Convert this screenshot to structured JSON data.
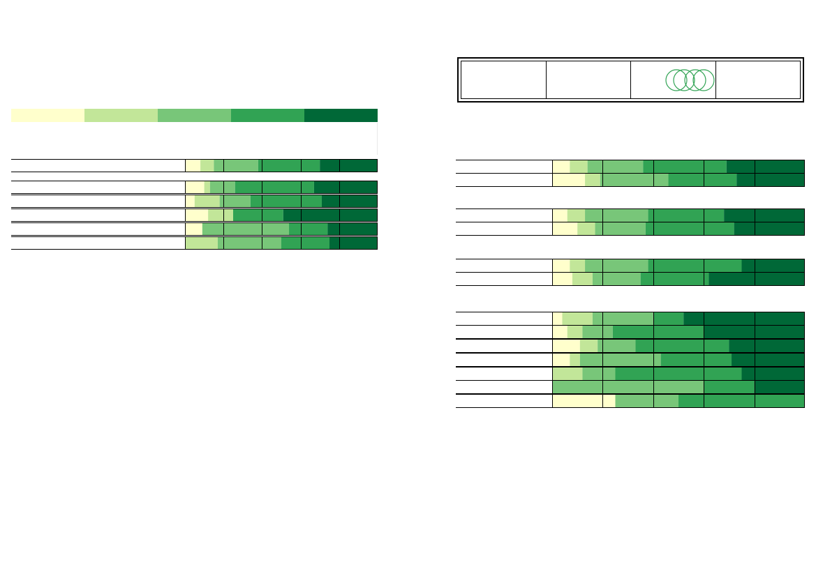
{
  "colors": {
    "scale": [
      "#ffffcc",
      "#c2e699",
      "#78c679",
      "#31a354",
      "#006837"
    ],
    "gridline": "#000000",
    "rings": "#31a354"
  },
  "legend": {
    "colors": [
      "#ffffcc",
      "#c2e699",
      "#78c679",
      "#31a354",
      "#006837"
    ]
  },
  "header_table": {
    "columns": 4,
    "icon": "interlocking-rings-icon"
  },
  "chart_data": [
    {
      "type": "stacked-bar",
      "orientation": "horizontal",
      "scale": "percent",
      "xlim": [
        0,
        100
      ],
      "gridlines": [
        20,
        40,
        60,
        80
      ],
      "categories": [],
      "rows": [
        [
          8,
          7,
          23,
          32,
          30
        ],
        [
          10,
          3,
          13,
          41,
          33
        ],
        [
          5,
          13,
          16,
          37,
          29
        ],
        [
          12,
          13,
          0,
          26,
          49
        ],
        [
          9,
          0,
          45,
          20,
          26
        ],
        [
          0,
          17,
          33,
          25,
          25
        ]
      ],
      "title": "",
      "xlabel": "",
      "ylabel": ""
    },
    {
      "type": "stacked-bar",
      "orientation": "horizontal",
      "scale": "percent",
      "xlim": [
        0,
        100
      ],
      "gridlines": [
        20,
        40,
        60,
        80
      ],
      "categories": [],
      "rows": [
        [
          7,
          7,
          22,
          33,
          31
        ],
        [
          13,
          6,
          27,
          27,
          27
        ],
        [
          6,
          7,
          25,
          30,
          32
        ],
        [
          10,
          7,
          20,
          35,
          28
        ],
        [
          7,
          6,
          25,
          37,
          25
        ],
        [
          8,
          8,
          19,
          27,
          38
        ],
        [
          4,
          12,
          24,
          12,
          48
        ],
        [
          6,
          6,
          12,
          36,
          40
        ],
        [
          11,
          7,
          15,
          37,
          30
        ],
        [
          7,
          4,
          32,
          28,
          29
        ],
        [
          0,
          12,
          13,
          50,
          25
        ],
        [
          0,
          0,
          60,
          20,
          20
        ],
        [
          25,
          0,
          25,
          50,
          0
        ]
      ],
      "title": "",
      "xlabel": "",
      "ylabel": ""
    }
  ]
}
